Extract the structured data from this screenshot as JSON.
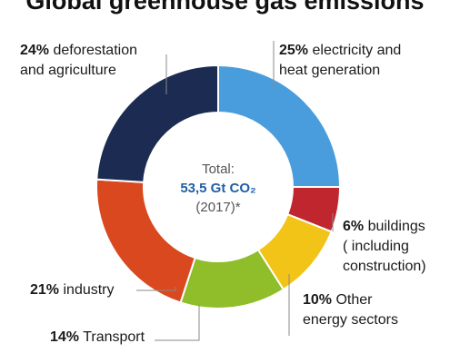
{
  "chart_data": {
    "type": "pie",
    "title": "Global greenhouse gas emissions",
    "center": {
      "label": "Total:",
      "value": "53,5 Gt CO₂",
      "year": "(2017)*"
    },
    "slices": [
      {
        "pct": "25%",
        "label_line1": "electricity and",
        "label_line2": "heat generation",
        "value": 25,
        "color": "#4a9ddc"
      },
      {
        "pct": "6%",
        "label_line1": "buildings",
        "label_line2": "( including",
        "label_line3": "construction)",
        "value": 6,
        "color": "#c0262e"
      },
      {
        "pct": "10%",
        "label_line1": "Other",
        "label_line2": "energy sectors",
        "value": 10,
        "color": "#f2c418"
      },
      {
        "pct": "14%",
        "label_line1": "Transport",
        "value": 14,
        "color": "#8fbe2a"
      },
      {
        "pct": "21%",
        "label_line1": "industry",
        "value": 21,
        "color": "#d9481f"
      },
      {
        "pct": "24%",
        "label_line1": "deforestation",
        "label_line2": "and agriculture",
        "value": 24,
        "color": "#1c2b52"
      }
    ]
  }
}
